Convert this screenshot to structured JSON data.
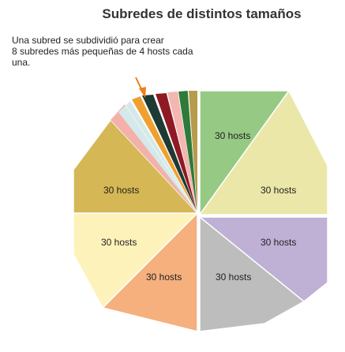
{
  "title": "Subredes de distintos tamaños",
  "annotation": {
    "line1": "Una subred se subdividió para crear",
    "line2": "8 subredes más pequeñas de 4 hosts cada",
    "line3": "una."
  },
  "subnets": [
    {
      "label": "30 hosts",
      "color": "#96c983"
    },
    {
      "label": "30 hosts",
      "color": "#eae7a8"
    },
    {
      "label": "30 hosts",
      "color": "#bfb0d6"
    },
    {
      "label": "30 hosts",
      "color": "#bdbdbd"
    },
    {
      "label": "30 hosts",
      "color": "#f5b07d"
    },
    {
      "label": "30 hosts",
      "color": "#fdf2ba"
    },
    {
      "label": "30 hosts",
      "color": "#d5b755"
    }
  ],
  "small_subnet_colors": [
    "#f2b2aa",
    "#d5e9ea",
    "#f0a030",
    "#1e3b33",
    "#8f1a23",
    "#f4b6b0",
    "#2e7a3a",
    "#b79b4a"
  ],
  "arrow_color": "#f07e1a"
}
